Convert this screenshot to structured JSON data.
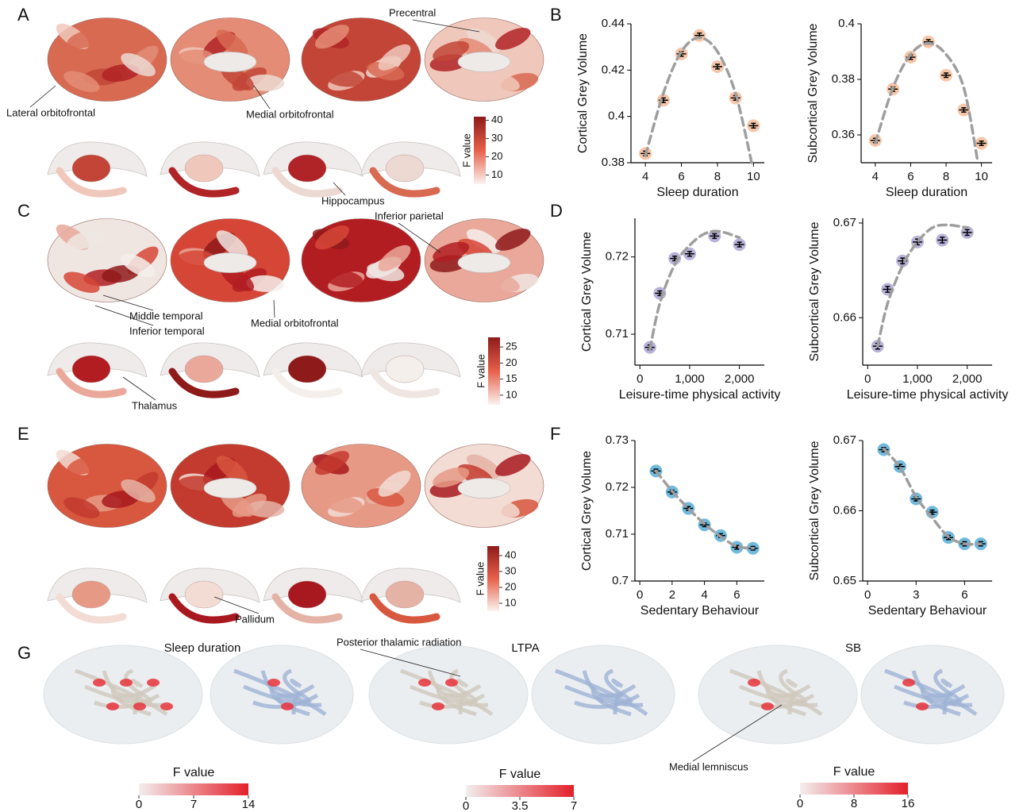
{
  "chart_data": [
    {
      "type": "scatter",
      "x_label": "Sleep duration",
      "y_label": "Cortical Grey Volume",
      "x": [
        4,
        5,
        6,
        7,
        8,
        9,
        10
      ],
      "series": [
        {
          "color": "#f7c6a9",
          "values": [
            0.384,
            0.407,
            0.427,
            0.435,
            0.4215,
            0.408,
            0.396
          ],
          "errors": [
            0.001,
            0.001,
            0.001,
            0.001,
            0.001,
            0.001,
            0.001
          ]
        }
      ],
      "fit": {
        "x": [
          4,
          5,
          6,
          7,
          8,
          9,
          9.9
        ],
        "values": [
          0.383,
          0.41,
          0.428,
          0.434,
          0.428,
          0.41,
          0.38
        ]
      },
      "xlim": [
        3.2,
        10.6
      ],
      "ylim": [
        0.38,
        0.44
      ],
      "xticks": [
        4,
        6,
        8,
        10
      ],
      "yticks": [
        0.38,
        0.4,
        0.42,
        0.44
      ]
    },
    {
      "type": "scatter",
      "x_label": "Sleep duration",
      "y_label": "Subcortical Grey Volume",
      "x": [
        4,
        5,
        6,
        7,
        8,
        9,
        10
      ],
      "series": [
        {
          "color": "#f7c6a9",
          "values": [
            0.358,
            0.3765,
            0.388,
            0.3935,
            0.3815,
            0.369,
            0.357
          ],
          "errors": [
            0.0008,
            0.0008,
            0.0008,
            0.0008,
            0.0008,
            0.0008,
            0.0008
          ]
        }
      ],
      "fit": {
        "x": [
          4,
          5,
          6,
          7,
          8,
          9,
          9.8
        ],
        "values": [
          0.357,
          0.377,
          0.389,
          0.393,
          0.389,
          0.377,
          0.35
        ]
      },
      "xlim": [
        3.2,
        10.6
      ],
      "ylim": [
        0.35,
        0.4
      ],
      "xticks": [
        4,
        6,
        8,
        10
      ],
      "yticks": [
        0.36,
        0.38,
        0.4
      ]
    },
    {
      "type": "scatter",
      "x_label": "Leisure-time physical activity",
      "y_label": "Cortical Grey Volume",
      "x": [
        200,
        400,
        700,
        1000,
        1500,
        2000
      ],
      "series": [
        {
          "color": "#b9b3da",
          "values": [
            0.7083,
            0.7153,
            0.7198,
            0.7204,
            0.7227,
            0.7216
          ],
          "errors": [
            0.0003,
            0.0003,
            0.0003,
            0.0003,
            0.0003,
            0.0003
          ]
        }
      ],
      "fit": {
        "x": [
          200,
          400,
          700,
          1000,
          1300,
          1600,
          2000
        ],
        "values": [
          0.708,
          0.714,
          0.719,
          0.7215,
          0.723,
          0.7233,
          0.7225
        ]
      },
      "xlim": [
        -100,
        2500
      ],
      "ylim": [
        0.706,
        0.725
      ],
      "xticks": [
        0,
        {
          "value": 1000,
          "label": "1,000"
        },
        {
          "value": 2000,
          "label": "2,000"
        }
      ],
      "yticks": [
        0.71,
        0.72
      ]
    },
    {
      "type": "scatter",
      "x_label": "Leisure-time physical activity",
      "y_label": "Subcortical Grey Volume",
      "x": [
        200,
        400,
        700,
        1000,
        1500,
        2000
      ],
      "series": [
        {
          "color": "#b9b3da",
          "values": [
            0.657,
            0.663,
            0.666,
            0.668,
            0.6682,
            0.669
          ],
          "errors": [
            0.0003,
            0.0003,
            0.0003,
            0.0003,
            0.0003,
            0.0003
          ]
        }
      ],
      "fit": {
        "x": [
          200,
          400,
          700,
          1000,
          1300,
          1600,
          2000
        ],
        "values": [
          0.657,
          0.6615,
          0.6655,
          0.668,
          0.6695,
          0.6698,
          0.6695
        ]
      },
      "xlim": [
        -100,
        2500
      ],
      "ylim": [
        0.655,
        0.6705
      ],
      "xticks": [
        0,
        {
          "value": 1000,
          "label": "1,000"
        },
        {
          "value": 2000,
          "label": "2,000"
        }
      ],
      "yticks": [
        0.66,
        0.67
      ]
    },
    {
      "type": "scatter",
      "x_label": "Sedentary Behaviour",
      "y_label": "Cortical Grey Volume",
      "x": [
        1,
        2,
        3,
        4,
        5,
        6,
        7
      ],
      "series": [
        {
          "color": "#72badd",
          "values": [
            0.7235,
            0.719,
            0.7155,
            0.712,
            0.7097,
            0.7072,
            0.707
          ],
          "errors": [
            0.0004,
            0.0004,
            0.0004,
            0.0004,
            0.0004,
            0.0004,
            0.0004
          ]
        }
      ],
      "fit": {
        "x": [
          1,
          2,
          3,
          4,
          5,
          6,
          7
        ],
        "values": [
          0.7235,
          0.7192,
          0.7155,
          0.7122,
          0.7095,
          0.7074,
          0.707
        ]
      },
      "xlim": [
        -0.3,
        7.7
      ],
      "ylim": [
        0.7,
        0.73
      ],
      "xticks": [
        0,
        2,
        4,
        6
      ],
      "yticks": [
        0.7,
        0.71,
        0.72,
        0.73
      ]
    },
    {
      "type": "scatter",
      "x_label": "Sedentary Behaviour",
      "y_label": "Subcortical Grey Volume",
      "x": [
        1,
        2,
        3,
        4,
        5,
        6,
        7
      ],
      "series": [
        {
          "color": "#72badd",
          "values": [
            0.6687,
            0.6663,
            0.6617,
            0.6598,
            0.6562,
            0.6553,
            0.6553
          ],
          "errors": [
            0.0003,
            0.0003,
            0.0003,
            0.0003,
            0.0003,
            0.0003,
            0.0003
          ]
        }
      ],
      "fit": {
        "x": [
          1,
          2,
          3,
          4,
          5,
          6,
          7
        ],
        "values": [
          0.6688,
          0.6662,
          0.662,
          0.659,
          0.6563,
          0.6553,
          0.6553
        ]
      },
      "xlim": [
        -0.3,
        7.7
      ],
      "ylim": [
        0.65,
        0.67
      ],
      "xticks": [
        0,
        3,
        6
      ],
      "yticks": [
        0.65,
        0.66,
        0.67
      ]
    }
  ],
  "figure": {
    "panels": [
      "A",
      "B",
      "C",
      "D",
      "E",
      "F",
      "G"
    ],
    "annotations": [
      "Precentral",
      "Lateral orbitofrontal",
      "Medial orbitofrontal",
      "Hippocampus",
      "Inferior parietal",
      "Middle temporal",
      "Inferior temporal",
      "Medial orbitofrontal",
      "Thalamus",
      "Pallidum",
      "Posterior thalamic radiation",
      "Medial lemniscus"
    ],
    "colorbars": [
      {
        "label": "F value",
        "lim": [
          5,
          42
        ],
        "ticks": [
          10,
          20,
          30,
          40
        ]
      },
      {
        "label": "F value",
        "lim": [
          7,
          28
        ],
        "ticks": [
          10,
          15,
          20,
          25
        ]
      },
      {
        "label": "F value",
        "lim": [
          5,
          46
        ],
        "ticks": [
          10,
          20,
          30,
          40
        ]
      },
      {
        "label": "F value",
        "lim": [
          0,
          14
        ],
        "ticks": [
          0,
          7,
          14
        ]
      },
      {
        "label": "F value",
        "lim": [
          0,
          7
        ],
        "ticks": [
          0,
          3.5,
          7
        ]
      },
      {
        "label": "F value",
        "lim": [
          0,
          16
        ],
        "ticks": [
          0,
          8,
          16
        ]
      }
    ],
    "tract_titles": [
      "Sleep duration",
      "LTPA",
      "SB"
    ]
  }
}
